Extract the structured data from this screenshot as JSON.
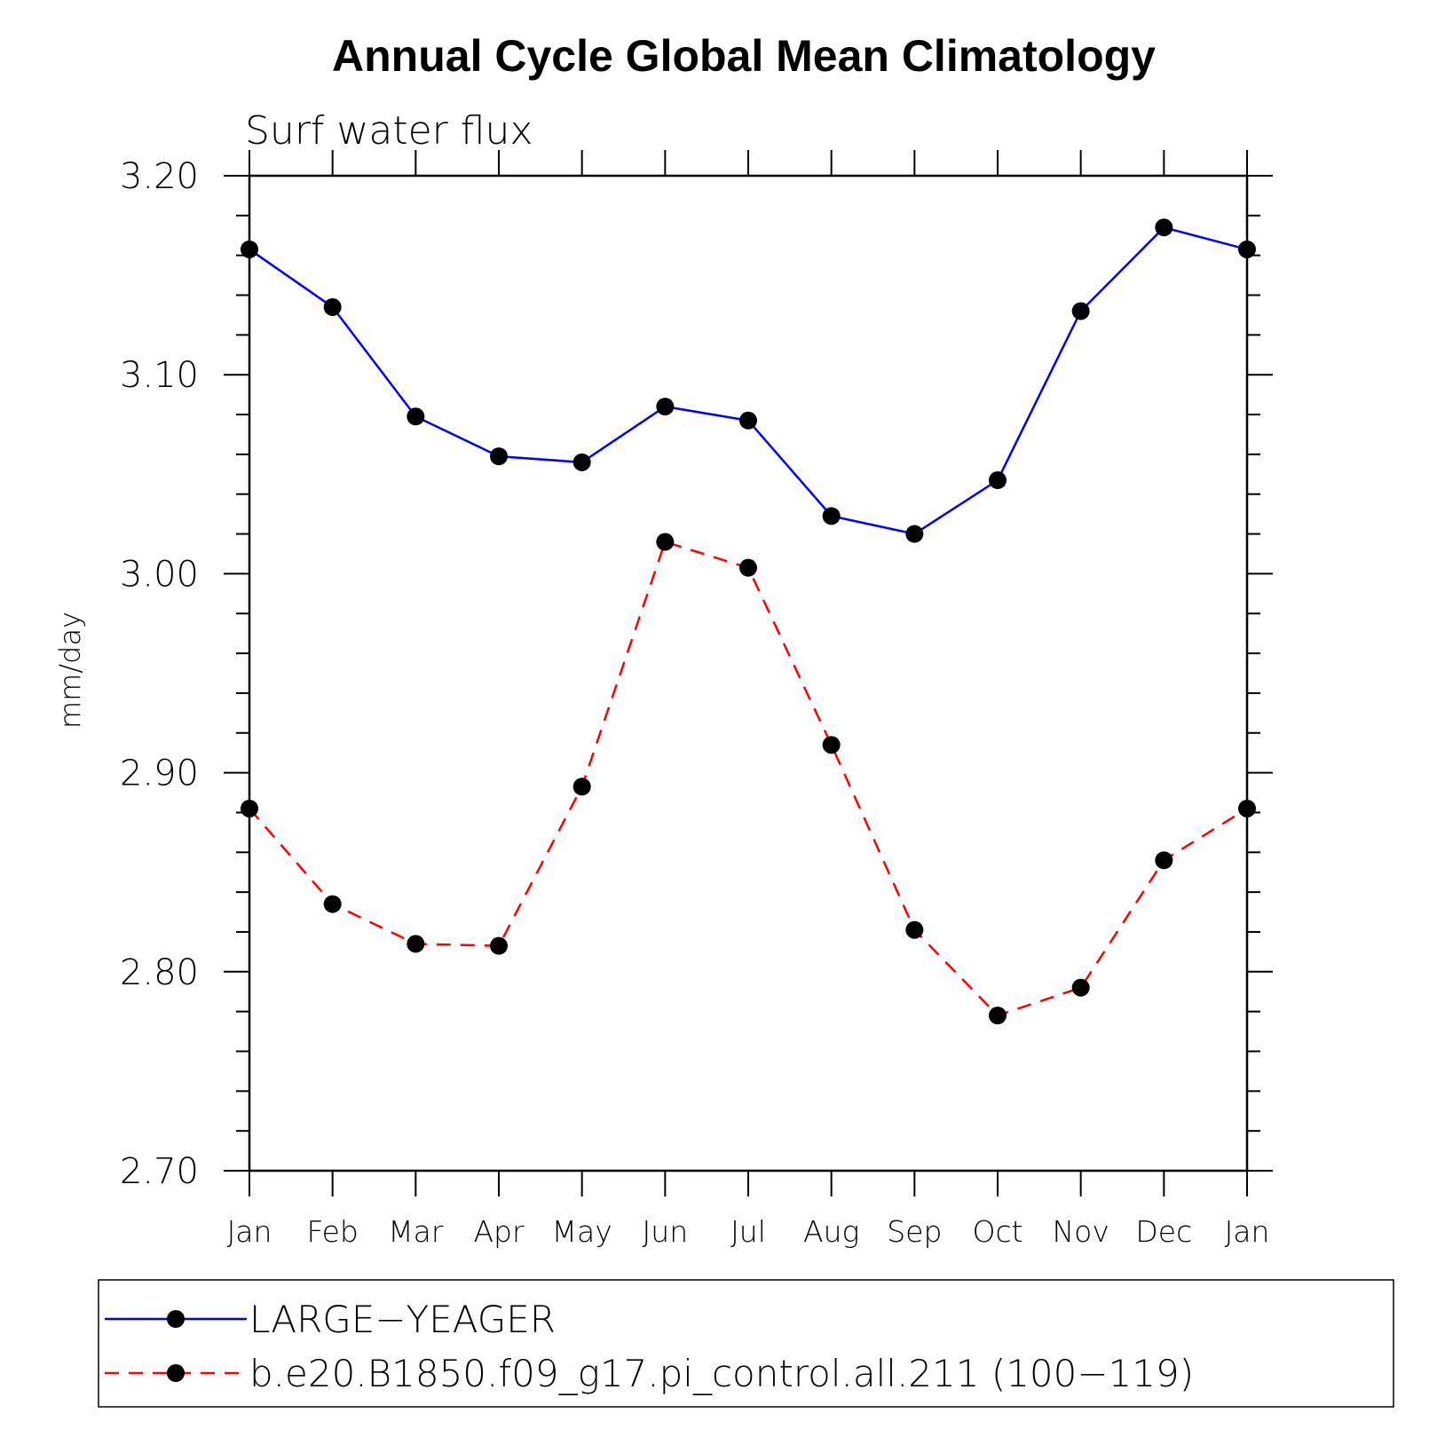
{
  "chart_data": {
    "type": "line",
    "title": "Annual Cycle Global Mean Climatology",
    "subtitle": "Surf water flux",
    "ylabel": "mm/day",
    "xlabel": "",
    "categories": [
      "Jan",
      "Feb",
      "Mar",
      "Apr",
      "May",
      "Jun",
      "Jul",
      "Aug",
      "Sep",
      "Oct",
      "Nov",
      "Dec",
      "Jan"
    ],
    "ylim": [
      2.7,
      3.2
    ],
    "yticks": [
      "2.70",
      "2.80",
      "2.90",
      "3.00",
      "3.10",
      "3.20"
    ],
    "grid": false,
    "legend_position": "bottom",
    "series": [
      {
        "name": "LARGE−YEAGER",
        "color": "#0000ff",
        "dash": "solid",
        "marker": "filled-circle",
        "values": [
          3.163,
          3.134,
          3.079,
          3.059,
          3.056,
          3.084,
          3.077,
          3.029,
          3.02,
          3.047,
          3.132,
          3.174,
          3.163
        ]
      },
      {
        "name": "b.e20.B1850.f09_g17.pi_control.all.211 (100−119)",
        "color": "#ff0000",
        "dash": "dashed",
        "marker": "filled-circle",
        "values": [
          2.882,
          2.834,
          2.814,
          2.813,
          2.893,
          3.016,
          3.003,
          2.914,
          2.821,
          2.778,
          2.792,
          2.856,
          2.882
        ]
      }
    ]
  }
}
